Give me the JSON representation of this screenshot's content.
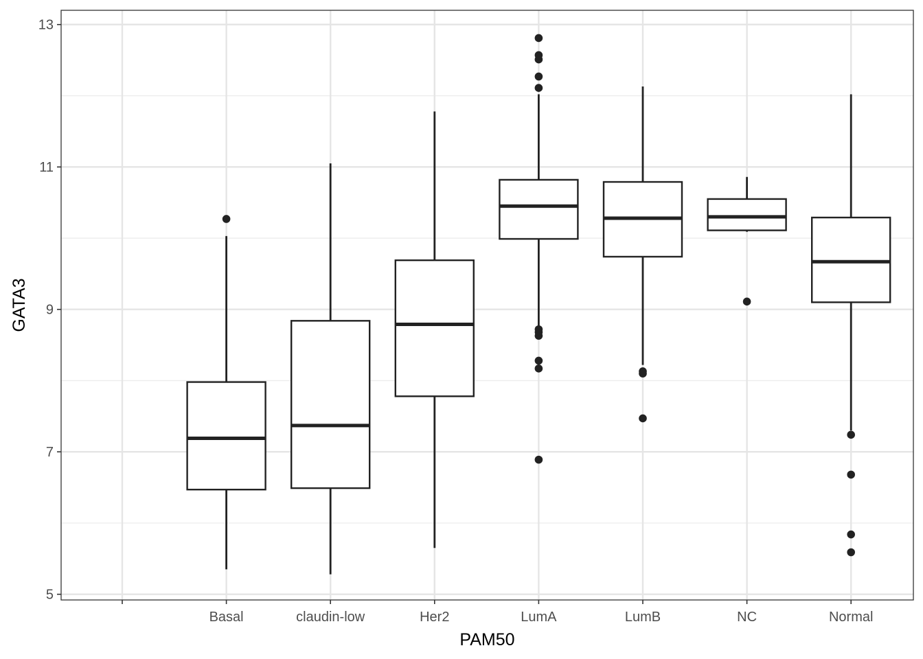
{
  "chart_data": {
    "type": "boxplot",
    "title": "",
    "xlabel": "PAM50",
    "ylabel": "GATA3",
    "categories": [
      "",
      "Basal",
      "claudin-low",
      "Her2",
      "LumA",
      "LumB",
      "NC",
      "Normal"
    ],
    "ylim": [
      4.92,
      13.2
    ],
    "yticks": [
      5,
      7,
      9,
      11,
      13
    ],
    "grid": true,
    "legend": "none",
    "boxes": [
      {
        "category": "Basal",
        "whisker_low": 5.35,
        "q1": 6.47,
        "median": 7.19,
        "q3": 7.98,
        "whisker_high": 10.03,
        "outliers": [
          10.27
        ]
      },
      {
        "category": "claudin-low",
        "whisker_low": 5.28,
        "q1": 6.49,
        "median": 7.37,
        "q3": 8.84,
        "whisker_high": 11.05,
        "outliers": []
      },
      {
        "category": "Her2",
        "whisker_low": 5.65,
        "q1": 7.78,
        "median": 8.79,
        "q3": 9.69,
        "whisker_high": 11.78,
        "outliers": []
      },
      {
        "category": "LumA",
        "whisker_low": 8.75,
        "q1": 9.99,
        "median": 10.45,
        "q3": 10.82,
        "whisker_high": 12.02,
        "outliers": [
          12.11,
          12.27,
          12.51,
          12.57,
          12.81,
          8.72,
          8.68,
          8.63,
          8.28,
          8.17,
          6.89
        ]
      },
      {
        "category": "LumB",
        "whisker_low": 8.22,
        "q1": 9.74,
        "median": 10.28,
        "q3": 10.79,
        "whisker_high": 12.13,
        "outliers": [
          8.13,
          8.1,
          7.47
        ]
      },
      {
        "category": "NC",
        "whisker_low": 10.09,
        "q1": 10.11,
        "median": 10.3,
        "q3": 10.55,
        "whisker_high": 10.86,
        "outliers": [
          9.11
        ]
      },
      {
        "category": "Normal",
        "whisker_low": 7.3,
        "q1": 9.1,
        "median": 9.67,
        "q3": 10.29,
        "whisker_high": 12.02,
        "outliers": [
          7.24,
          6.68,
          5.84,
          5.59
        ]
      }
    ]
  }
}
